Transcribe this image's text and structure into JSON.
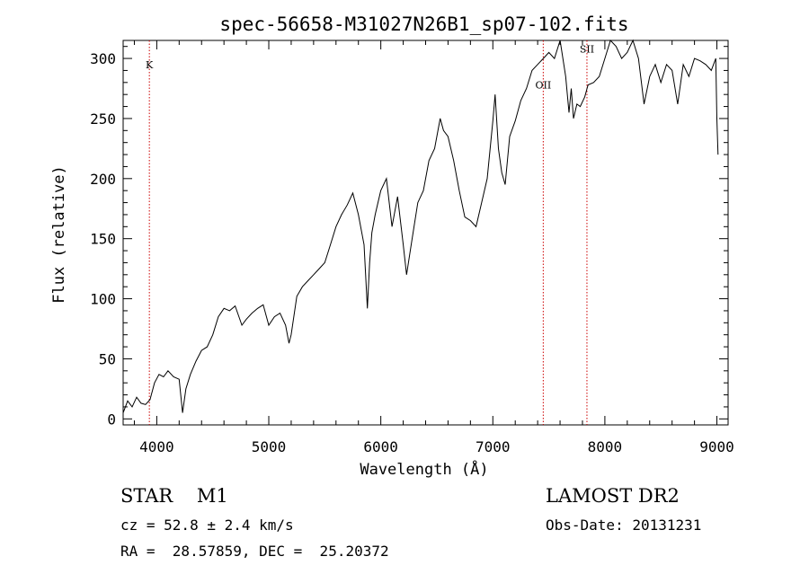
{
  "chart_data": {
    "type": "line",
    "title": "spec-56658-M31027N26B1_sp07-102.fits",
    "xlabel": "Wavelength (Å)",
    "ylabel": "Flux (relative)",
    "xlim": [
      3700,
      9100
    ],
    "ylim": [
      -5,
      315
    ],
    "x_ticks": [
      4000,
      5000,
      6000,
      7000,
      8000,
      9000
    ],
    "y_ticks": [
      0,
      50,
      100,
      150,
      200,
      250,
      300
    ],
    "grid": false,
    "line_color": "#000000",
    "marker_color": "#cc0000",
    "lines": [
      {
        "label": "K",
        "x": 3934,
        "label_y": 292
      },
      {
        "label": "OII",
        "x": 7450,
        "label_y": 275
      },
      {
        "label": "SII",
        "x": 7840,
        "label_y": 305
      }
    ],
    "series": [
      {
        "x": [
          3700,
          3740,
          3780,
          3820,
          3860,
          3900,
          3940,
          3980,
          4020,
          4060,
          4100,
          4150,
          4200,
          4230,
          4260,
          4300,
          4350,
          4400,
          4450,
          4500,
          4550,
          4600,
          4650,
          4700,
          4760,
          4800,
          4850,
          4900,
          4950,
          5000,
          5050,
          5100,
          5150,
          5180,
          5200,
          5250,
          5300,
          5350,
          5400,
          5450,
          5500,
          5550,
          5600,
          5650,
          5700,
          5750,
          5800,
          5850,
          5880,
          5900,
          5920,
          5950,
          6000,
          6050,
          6100,
          6150,
          6200,
          6230,
          6280,
          6330,
          6380,
          6430,
          6480,
          6530,
          6560,
          6600,
          6650,
          6700,
          6750,
          6800,
          6850,
          6900,
          6950,
          7000,
          7020,
          7050,
          7080,
          7110,
          7150,
          7200,
          7250,
          7300,
          7350,
          7400,
          7450,
          7500,
          7550,
          7600,
          7650,
          7680,
          7700,
          7720,
          7750,
          7780,
          7820,
          7850,
          7900,
          7950,
          8000,
          8050,
          8100,
          8150,
          8200,
          8250,
          8300,
          8350,
          8400,
          8450,
          8500,
          8550,
          8600,
          8650,
          8700,
          8750,
          8800,
          8850,
          8900,
          8950,
          8990,
          9000,
          9010
        ],
        "y": [
          5,
          15,
          10,
          18,
          13,
          12,
          16,
          30,
          37,
          35,
          40,
          35,
          33,
          5,
          25,
          37,
          48,
          57,
          60,
          70,
          85,
          92,
          90,
          94,
          78,
          83,
          88,
          92,
          95,
          78,
          85,
          88,
          78,
          63,
          70,
          102,
          110,
          115,
          120,
          125,
          130,
          145,
          160,
          170,
          178,
          188,
          170,
          145,
          92,
          130,
          155,
          170,
          190,
          200,
          160,
          185,
          145,
          120,
          150,
          180,
          190,
          215,
          225,
          250,
          240,
          235,
          215,
          190,
          168,
          165,
          160,
          180,
          200,
          248,
          270,
          225,
          205,
          195,
          235,
          248,
          265,
          275,
          290,
          295,
          300,
          305,
          300,
          315,
          285,
          255,
          275,
          250,
          262,
          260,
          268,
          278,
          280,
          285,
          300,
          318,
          310,
          300,
          305,
          318,
          300,
          262,
          285,
          295,
          280,
          295,
          290,
          262,
          295,
          285,
          300,
          298,
          295,
          290,
          300,
          250,
          220
        ]
      }
    ]
  },
  "info": {
    "object": "STAR    M1",
    "cz": "cz = 52.8 ± 2.4 km/s",
    "radec": "RA =  28.57859, DEC =  25.20372",
    "survey": "LAMOST DR2",
    "obsdate": "Obs-Date: 20131231"
  }
}
